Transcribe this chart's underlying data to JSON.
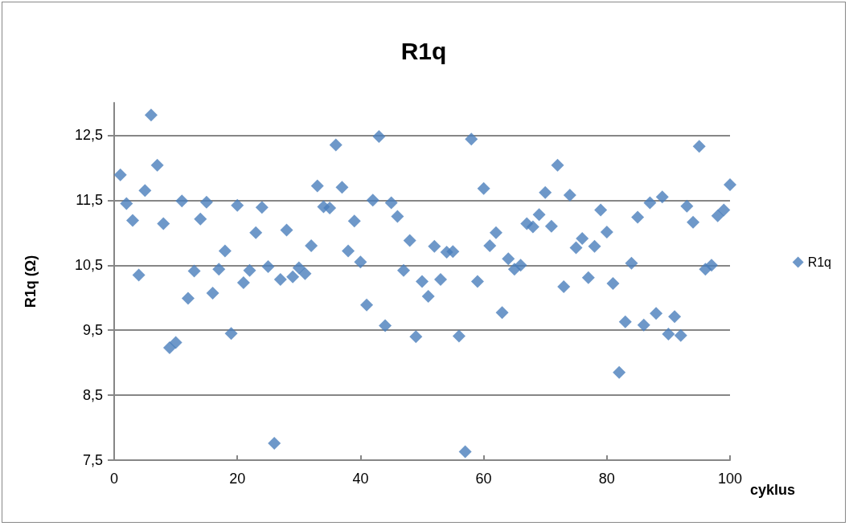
{
  "chart_data": {
    "type": "scatter",
    "title": "R1q",
    "xlabel": "cyklus",
    "ylabel": "R1q (Ω)",
    "xlim": [
      0,
      100
    ],
    "xticks": [
      0,
      20,
      40,
      60,
      80,
      100
    ],
    "ylim": [
      7.5,
      13
    ],
    "yticks": [
      {
        "value": 7.5,
        "label": "7,5"
      },
      {
        "value": 8.5,
        "label": "8,5"
      },
      {
        "value": 9.5,
        "label": "9,5"
      },
      {
        "value": 10.5,
        "label": "10,5"
      },
      {
        "value": 11.5,
        "label": "11,5"
      },
      {
        "value": 12.5,
        "label": "12,5"
      }
    ],
    "grid": "y",
    "legend": "right",
    "marker": "diamond",
    "x": [
      1,
      2,
      3,
      4,
      5,
      6,
      7,
      8,
      9,
      10,
      11,
      12,
      13,
      14,
      15,
      16,
      17,
      18,
      19,
      20,
      21,
      22,
      23,
      24,
      25,
      26,
      27,
      28,
      29,
      30,
      31,
      32,
      33,
      34,
      35,
      36,
      37,
      38,
      39,
      40,
      41,
      42,
      43,
      44,
      45,
      46,
      47,
      48,
      49,
      50,
      51,
      52,
      53,
      54,
      55,
      56,
      57,
      58,
      59,
      60,
      61,
      62,
      63,
      64,
      65,
      66,
      67,
      68,
      69,
      70,
      71,
      72,
      73,
      74,
      75,
      76,
      77,
      78,
      79,
      80,
      81,
      82,
      83,
      84,
      85,
      86,
      87,
      88,
      89,
      90,
      91,
      92,
      93,
      94,
      95,
      96,
      97,
      98,
      99,
      100
    ],
    "series": [
      {
        "name": "R1q",
        "color": "#4a7ebb",
        "values": [
          11.89,
          11.45,
          11.19,
          10.35,
          11.65,
          12.81,
          12.04,
          11.14,
          9.23,
          9.31,
          11.49,
          9.99,
          10.41,
          11.21,
          11.47,
          10.07,
          10.44,
          10.72,
          9.45,
          11.42,
          10.23,
          10.42,
          11.0,
          11.39,
          10.48,
          7.76,
          10.28,
          11.04,
          10.32,
          10.46,
          10.37,
          10.8,
          11.72,
          11.4,
          11.38,
          12.35,
          11.7,
          10.72,
          11.18,
          10.55,
          9.89,
          11.5,
          12.48,
          9.57,
          11.46,
          11.25,
          10.42,
          10.88,
          9.4,
          10.25,
          10.02,
          10.79,
          10.28,
          10.7,
          10.71,
          9.41,
          7.63,
          12.44,
          10.25,
          11.68,
          10.8,
          11.0,
          9.77,
          10.6,
          10.44,
          10.5,
          11.14,
          11.09,
          11.28,
          11.62,
          11.1,
          12.04,
          10.17,
          11.58,
          10.77,
          10.91,
          10.31,
          10.79,
          11.35,
          11.01,
          10.22,
          8.85,
          9.63,
          10.53,
          11.24,
          9.58,
          11.46,
          9.76,
          11.55,
          9.44,
          9.71,
          9.42,
          11.41,
          11.16,
          12.33,
          10.44,
          10.5,
          11.26,
          11.35,
          11.74
        ]
      }
    ]
  }
}
